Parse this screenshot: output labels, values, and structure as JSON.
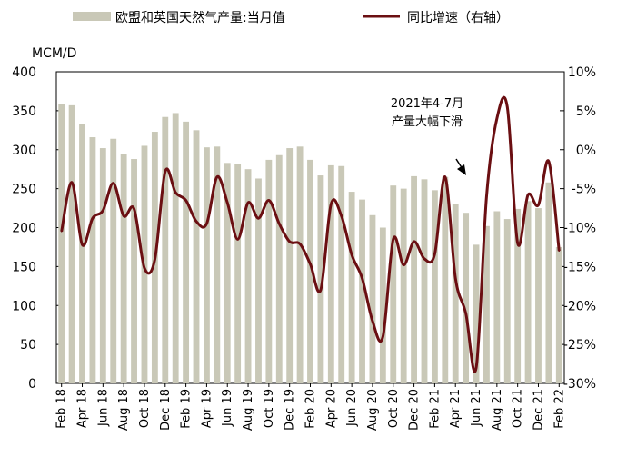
{
  "chart_data": {
    "type": "bar+line",
    "legend": [
      {
        "name": "欧盟和英国天然气产量:当月值",
        "kind": "bar",
        "color": "#c9c8b7"
      },
      {
        "name": "同比增速（右轴）",
        "kind": "line",
        "color": "#6b0f12"
      }
    ],
    "legend_position": "top",
    "left_axis": {
      "unit_label": "MCM/D",
      "min": 0,
      "max": 400,
      "ticks": [
        "0",
        "50",
        "100",
        "150",
        "200",
        "250",
        "300",
        "350",
        "400"
      ]
    },
    "right_axis": {
      "min": -30,
      "max": 10,
      "ticks": [
        "-30%",
        "-25%",
        "-20%",
        "-15%",
        "-10%",
        "-5%",
        "0%",
        "5%",
        "10%"
      ]
    },
    "x_tick_labels": [
      "Feb 18",
      "Apr 18",
      "Jun 18",
      "Aug 18",
      "Oct 18",
      "Dec 18",
      "Feb 19",
      "Apr 19",
      "Jun 19",
      "Aug 19",
      "Oct 19",
      "Dec 19",
      "Feb 20",
      "Apr 20",
      "Jun 20",
      "Aug 20",
      "Oct 20",
      "Dec 20",
      "Feb 21",
      "Apr 21",
      "Jun 21",
      "Aug 21",
      "Oct 21",
      "Dec 21",
      "Feb 22"
    ],
    "months": [
      "Feb 18",
      "Mar 18",
      "Apr 18",
      "May 18",
      "Jun 18",
      "Jul 18",
      "Aug 18",
      "Sep 18",
      "Oct 18",
      "Nov 18",
      "Dec 18",
      "Jan 19",
      "Feb 19",
      "Mar 19",
      "Apr 19",
      "May 19",
      "Jun 19",
      "Jul 19",
      "Aug 19",
      "Sep 19",
      "Oct 19",
      "Nov 19",
      "Dec 19",
      "Jan 20",
      "Feb 20",
      "Mar 20",
      "Apr 20",
      "May 20",
      "Jun 20",
      "Jul 20",
      "Aug 20",
      "Sep 20",
      "Oct 20",
      "Nov 20",
      "Dec 20",
      "Jan 21",
      "Feb 21",
      "Mar 21",
      "Apr 21",
      "May 21",
      "Jun 21",
      "Jul 21",
      "Aug 21",
      "Sep 21",
      "Oct 21",
      "Nov 21",
      "Dec 21",
      "Jan 22",
      "Feb 22"
    ],
    "bar_values": [
      358,
      357,
      333,
      316,
      302,
      314,
      295,
      288,
      305,
      323,
      342,
      347,
      336,
      325,
      303,
      304,
      283,
      282,
      275,
      263,
      287,
      293,
      302,
      304,
      287,
      267,
      280,
      279,
      246,
      236,
      216,
      200,
      254,
      250,
      266,
      262,
      248,
      265,
      230,
      219,
      178,
      202,
      221,
      211,
      224,
      234,
      225,
      258,
      175
    ],
    "line_values": [
      -10.5,
      -4.2,
      -12.2,
      -8.8,
      -7.8,
      -4.3,
      -8.5,
      -7.6,
      -15.2,
      -14.1,
      -2.8,
      -5.5,
      -6.5,
      -9.2,
      -9.5,
      -3.5,
      -6.8,
      -11.5,
      -6.8,
      -8.8,
      -6.5,
      -9.5,
      -11.8,
      -12.1,
      -14.7,
      -18,
      -7,
      -8.5,
      -13.5,
      -16.5,
      -22,
      -24,
      -11.5,
      -14.8,
      -11.8,
      -14,
      -13.4,
      -3.5,
      -16.5,
      -21,
      -28,
      -6,
      4,
      5.5,
      -12,
      -5.8,
      -7.1,
      -1.5,
      -13
    ]
  },
  "annotation": {
    "line1": "2021年4-7月",
    "line2": "产量大幅下滑"
  }
}
